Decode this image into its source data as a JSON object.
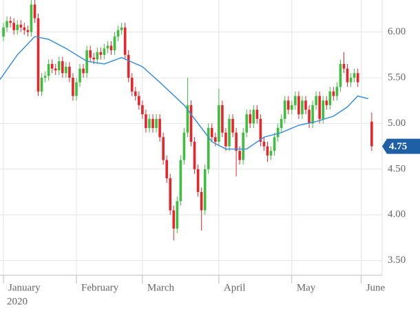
{
  "chart_data": {
    "type": "candlestick",
    "x": [
      0,
      1,
      2,
      3,
      4,
      5,
      6,
      7,
      8,
      9,
      10,
      11,
      12,
      13,
      14,
      15,
      16,
      17,
      18,
      19,
      20,
      21,
      22,
      23,
      24,
      25,
      26,
      27,
      28,
      29,
      30,
      31,
      32,
      33,
      34,
      35,
      36,
      37,
      38,
      39,
      40,
      41,
      42,
      43,
      44,
      45,
      46,
      47,
      48,
      49,
      50,
      51,
      52,
      53,
      54,
      55,
      56,
      57,
      58,
      59,
      60,
      61,
      62,
      63,
      64,
      65,
      66,
      67,
      68,
      69,
      70,
      71,
      72,
      73,
      74,
      75,
      76,
      77,
      78,
      79,
      80,
      81,
      82,
      83,
      84,
      85,
      86,
      87,
      88,
      89,
      90,
      91,
      92,
      93,
      94,
      95,
      96,
      97,
      98,
      99,
      100,
      101,
      102,
      106
    ],
    "open": [
      5.95,
      6.05,
      6.12,
      6.1,
      6.02,
      6.08,
      6.05,
      6.02,
      6.0,
      6.3,
      6.15,
      5.35,
      5.5,
      5.52,
      5.65,
      5.6,
      5.58,
      5.68,
      5.55,
      5.62,
      5.5,
      5.3,
      5.45,
      5.6,
      5.55,
      5.8,
      5.72,
      5.7,
      5.78,
      5.75,
      5.82,
      5.85,
      5.8,
      5.95,
      6.02,
      6.05,
      5.75,
      5.5,
      5.35,
      5.3,
      5.2,
      5.1,
      4.95,
      5.05,
      4.95,
      5.05,
      4.85,
      4.6,
      4.4,
      4.05,
      3.85,
      4.15,
      4.6,
      4.9,
      5.2,
      4.8,
      4.5,
      4.25,
      4.05,
      4.5,
      4.95,
      4.85,
      4.8,
      5.2,
      4.9,
      4.75,
      5.05,
      4.9,
      4.7,
      4.6,
      4.9,
      5.1,
      5.0,
      5.15,
      5.05,
      4.8,
      4.75,
      4.65,
      4.7,
      4.85,
      4.95,
      5.05,
      5.25,
      5.15,
      5.2,
      5.3,
      5.1,
      5.25,
      5.15,
      5.0,
      5.2,
      5.3,
      5.05,
      5.25,
      5.2,
      5.35,
      5.3,
      5.4,
      5.65,
      5.6,
      5.45,
      5.5,
      5.55,
      5.02
    ],
    "high": [
      6.1,
      6.17,
      6.17,
      6.15,
      6.13,
      6.13,
      6.1,
      6.07,
      6.35,
      6.35,
      6.2,
      5.55,
      5.57,
      5.7,
      5.7,
      5.65,
      5.73,
      5.73,
      5.67,
      5.67,
      5.55,
      5.5,
      5.65,
      5.65,
      5.85,
      5.85,
      5.77,
      5.83,
      5.83,
      5.87,
      5.9,
      5.9,
      6.0,
      6.07,
      6.1,
      6.1,
      5.8,
      5.55,
      5.4,
      5.35,
      5.25,
      5.15,
      5.1,
      5.1,
      5.1,
      5.1,
      4.9,
      4.65,
      4.45,
      4.1,
      4.2,
      4.65,
      4.95,
      5.5,
      5.25,
      4.85,
      4.55,
      4.3,
      4.55,
      5.0,
      5.0,
      4.9,
      5.38,
      5.25,
      4.95,
      5.1,
      5.1,
      4.95,
      4.75,
      4.95,
      5.15,
      5.15,
      5.2,
      5.2,
      5.1,
      4.85,
      4.8,
      4.75,
      4.9,
      5.0,
      5.1,
      5.3,
      5.3,
      5.25,
      5.35,
      5.35,
      5.3,
      5.3,
      5.2,
      5.25,
      5.35,
      5.35,
      5.3,
      5.3,
      5.4,
      5.4,
      5.45,
      5.7,
      5.78,
      5.65,
      5.55,
      5.6,
      5.6,
      5.12
    ],
    "low": [
      5.9,
      6.0,
      6.05,
      5.97,
      5.97,
      6.0,
      5.97,
      5.95,
      5.95,
      6.1,
      5.3,
      5.3,
      5.45,
      5.47,
      5.55,
      5.53,
      5.53,
      5.5,
      5.5,
      5.45,
      5.25,
      5.25,
      5.4,
      5.5,
      5.5,
      5.67,
      5.65,
      5.65,
      5.7,
      5.7,
      5.77,
      5.75,
      5.75,
      5.9,
      5.97,
      5.7,
      5.45,
      5.3,
      5.25,
      5.15,
      5.05,
      4.9,
      4.9,
      4.9,
      4.9,
      4.8,
      4.55,
      4.35,
      4.0,
      3.72,
      3.8,
      4.1,
      4.55,
      4.85,
      4.75,
      4.45,
      4.2,
      3.83,
      4.0,
      4.45,
      4.8,
      4.75,
      4.75,
      4.85,
      4.7,
      4.7,
      4.85,
      4.42,
      4.55,
      4.55,
      4.85,
      4.95,
      4.95,
      5.0,
      4.75,
      4.7,
      4.58,
      4.6,
      4.65,
      4.8,
      4.9,
      5.0,
      5.1,
      5.1,
      5.15,
      5.05,
      5.05,
      5.1,
      4.95,
      4.95,
      5.15,
      5.0,
      5.0,
      5.15,
      5.15,
      5.25,
      5.25,
      5.35,
      5.55,
      5.4,
      5.4,
      5.45,
      5.4,
      4.7
    ],
    "close": [
      6.05,
      6.12,
      6.1,
      6.02,
      6.08,
      6.05,
      6.02,
      6.0,
      6.3,
      6.15,
      5.35,
      5.5,
      5.52,
      5.65,
      5.6,
      5.58,
      5.68,
      5.55,
      5.62,
      5.5,
      5.3,
      5.45,
      5.6,
      5.55,
      5.8,
      5.72,
      5.7,
      5.78,
      5.75,
      5.82,
      5.85,
      5.8,
      5.95,
      6.02,
      6.05,
      5.75,
      5.5,
      5.35,
      5.3,
      5.2,
      5.1,
      4.95,
      5.05,
      4.95,
      5.05,
      4.85,
      4.6,
      4.4,
      4.05,
      3.85,
      4.15,
      4.6,
      4.9,
      5.2,
      4.8,
      4.5,
      4.25,
      4.05,
      4.5,
      4.95,
      4.85,
      4.8,
      5.2,
      4.9,
      4.75,
      5.05,
      4.9,
      4.7,
      4.6,
      4.9,
      5.1,
      5.0,
      5.15,
      5.05,
      4.8,
      4.75,
      4.65,
      4.7,
      4.85,
      4.95,
      5.05,
      5.25,
      5.15,
      5.2,
      5.3,
      5.1,
      5.25,
      5.15,
      5.0,
      5.2,
      5.3,
      5.05,
      5.25,
      5.2,
      5.35,
      5.3,
      5.4,
      5.65,
      5.6,
      5.45,
      5.5,
      5.55,
      5.45,
      4.75
    ],
    "up_color": "#3cbf3c",
    "down_color": "#e8242b",
    "moving_average": {
      "x": [
        -1,
        4,
        9,
        13,
        18,
        24,
        29,
        34,
        40,
        45,
        52,
        57,
        60,
        64,
        70,
        75,
        80,
        85,
        90,
        95,
        99,
        102,
        105
      ],
      "values": [
        5.48,
        5.75,
        5.95,
        5.92,
        5.82,
        5.68,
        5.65,
        5.72,
        5.62,
        5.45,
        5.2,
        4.95,
        4.8,
        4.72,
        4.72,
        4.85,
        4.9,
        4.98,
        5.02,
        5.08,
        5.18,
        5.3,
        5.27
      ],
      "color": "#3a8fd9"
    },
    "price_tag": 4.75,
    "price_tag_color": "#1f5fa6",
    "xlim": [
      -1,
      109
    ],
    "ylim": [
      3.34,
      6.35
    ],
    "xticks": [
      {
        "value": 0,
        "label": "January"
      },
      {
        "value": 21,
        "label": "February"
      },
      {
        "value": 40,
        "label": "March"
      },
      {
        "value": 62,
        "label": "April"
      },
      {
        "value": 83,
        "label": "May"
      },
      {
        "value": 103,
        "label": "June"
      }
    ],
    "x_year_label": "2020",
    "yticks": [
      {
        "value": 3.5,
        "label": "3.50"
      },
      {
        "value": 4,
        "label": "4.00"
      },
      {
        "value": 4.5,
        "label": "4.50"
      },
      {
        "value": 5,
        "label": "5.00"
      },
      {
        "value": 5.5,
        "label": "5.50"
      },
      {
        "value": 6,
        "label": "6.00"
      }
    ],
    "grid": true
  }
}
